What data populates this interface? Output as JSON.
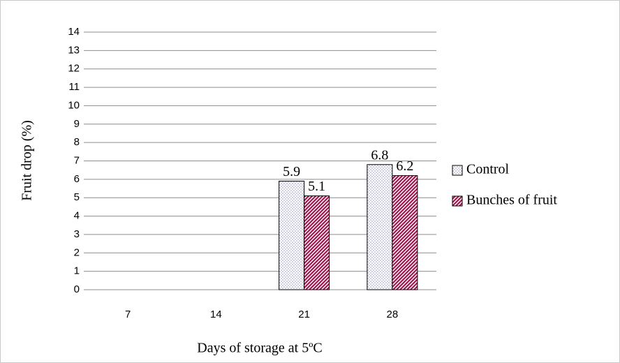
{
  "chart_data": {
    "type": "bar",
    "categories": [
      "7",
      "14",
      "21",
      "28"
    ],
    "series": [
      {
        "name": "Control",
        "color": "#8a8ab0",
        "pattern": "dots",
        "values": [
          null,
          null,
          5.9,
          6.8
        ]
      },
      {
        "name": "Bunches of fruit",
        "color": "#a3174f",
        "pattern": "stripes",
        "values": [
          null,
          null,
          5.1,
          6.2
        ]
      }
    ],
    "x_label": "Days of storage at 5ºC",
    "y_label": "Fruit drop (%)",
    "ylim": [
      0,
      14
    ],
    "yticks": [
      0,
      1,
      2,
      3,
      4,
      5,
      6,
      7,
      8,
      9,
      10,
      11,
      12,
      13,
      14
    ],
    "grid": true,
    "legend": "right"
  }
}
